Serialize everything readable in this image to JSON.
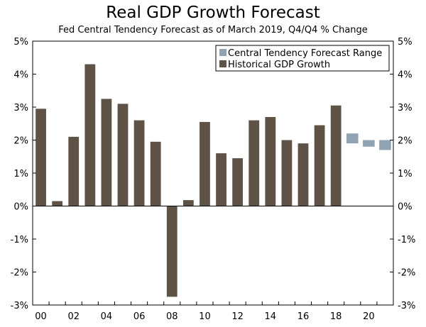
{
  "chart_data": {
    "type": "bar",
    "title": "Real GDP Growth Forecast",
    "subtitle": "Fed Central Tendency Forecast as of March 2019, Q4/Q4 % Change",
    "xlabel": "",
    "ylabel": "",
    "ylim": [
      -3,
      5
    ],
    "y_ticks": [
      5,
      4,
      3,
      2,
      1,
      0,
      -1,
      -2,
      -3
    ],
    "y_tick_labels": [
      "5%",
      "4%",
      "3%",
      "2%",
      "1%",
      "0%",
      "-1%",
      "-2%",
      "-3%"
    ],
    "x_tick_labels": [
      {
        "year": 2000,
        "label": "00"
      },
      {
        "year": 2002,
        "label": "02"
      },
      {
        "year": 2004,
        "label": "04"
      },
      {
        "year": 2006,
        "label": "06"
      },
      {
        "year": 2008,
        "label": "08"
      },
      {
        "year": 2010,
        "label": "10"
      },
      {
        "year": 2012,
        "label": "12"
      },
      {
        "year": 2014,
        "label": "14"
      },
      {
        "year": 2016,
        "label": "16"
      },
      {
        "year": 2018,
        "label": "18"
      },
      {
        "year": 2020,
        "label": "20"
      }
    ],
    "series": [
      {
        "name": "Historical GDP Growth",
        "color": "#5f5246",
        "years": [
          2000,
          2001,
          2002,
          2003,
          2004,
          2005,
          2006,
          2007,
          2008,
          2009,
          2010,
          2011,
          2012,
          2013,
          2014,
          2015,
          2016,
          2017,
          2018
        ],
        "values": [
          2.95,
          0.15,
          2.1,
          4.3,
          3.25,
          3.1,
          2.6,
          1.95,
          -2.75,
          0.18,
          2.55,
          1.6,
          1.45,
          2.6,
          2.7,
          2.0,
          1.9,
          2.45,
          3.05
        ]
      },
      {
        "name": "Central Tendency Forecast Range",
        "color": "#8fa3b3",
        "years": [
          2019,
          2020,
          2021
        ],
        "ranges": [
          [
            1.9,
            2.2
          ],
          [
            1.8,
            2.0
          ],
          [
            1.7,
            2.0
          ]
        ]
      }
    ],
    "legend_position": "top-right"
  }
}
